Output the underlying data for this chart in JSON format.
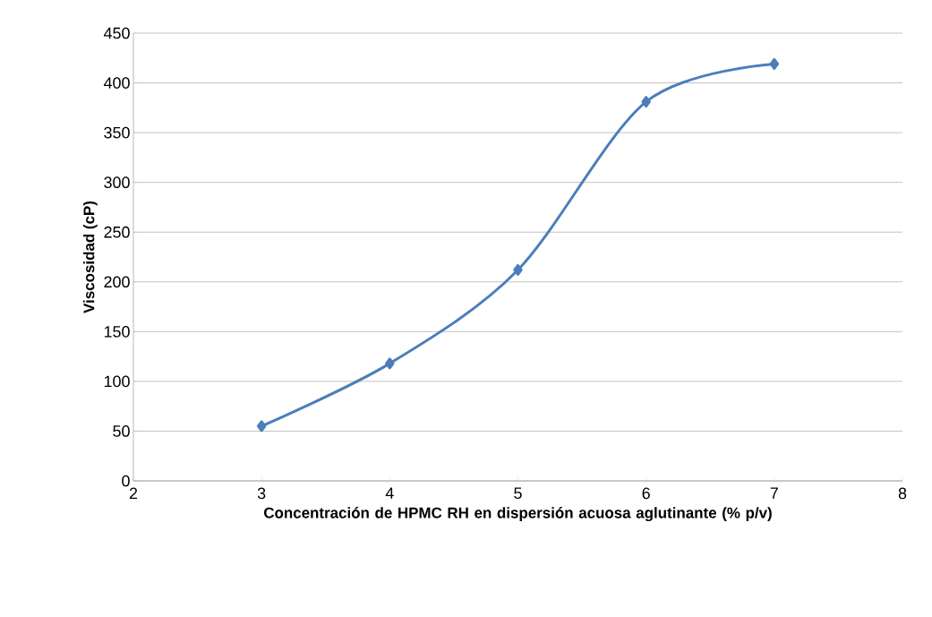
{
  "chart_data": {
    "type": "line",
    "xlabel": "Concentración de HPMC RH en dispersión acuosa aglutinante (% p/v)",
    "ylabel": "Viscosidad (cP)",
    "x": [
      3,
      4,
      5,
      6,
      7
    ],
    "series": [
      {
        "color": "#4a7ebb",
        "values": [
          55,
          118,
          212,
          381,
          419
        ]
      }
    ],
    "xlim": [
      2,
      8
    ],
    "xticks": [
      2,
      3,
      4,
      5,
      6,
      7,
      8
    ],
    "ylim": [
      0,
      450
    ],
    "yticks": [
      0,
      50,
      100,
      150,
      200,
      250,
      300,
      350,
      400,
      450
    ],
    "grid": "y",
    "marker": "diamond",
    "line_style": "solid"
  }
}
